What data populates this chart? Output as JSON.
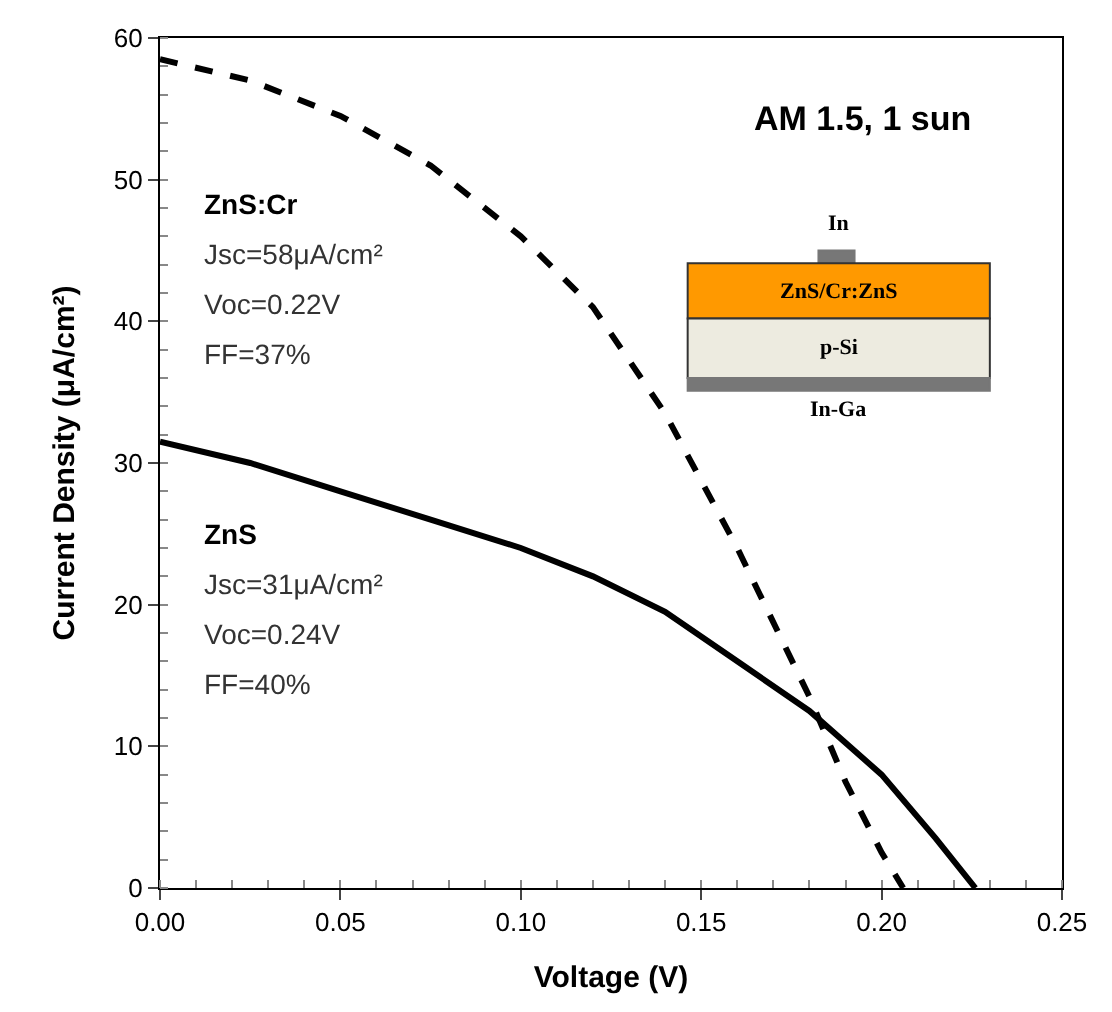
{
  "chart_data": {
    "type": "line",
    "xlabel": "Voltage (V)",
    "ylabel": "Current Density (μA/cm²)",
    "xlim": [
      0,
      0.25
    ],
    "xticks": [
      {
        "value": 0,
        "label": "0.00"
      },
      0.05,
      {
        "value": 0.1,
        "label": "0.10"
      },
      0.15,
      {
        "value": 0.2,
        "label": "0.20"
      },
      0.25
    ],
    "ylim": [
      0,
      60
    ],
    "yticks": [
      0,
      10,
      20,
      30,
      40,
      50,
      60
    ],
    "marker": "none",
    "series": [
      {
        "color": "#000000",
        "line_style": "dashed",
        "x": [
          0,
          0.025,
          0.05,
          0.075,
          0.1,
          0.12,
          0.14,
          0.16,
          0.18,
          0.19,
          0.2,
          0.206
        ],
        "values": [
          58.5,
          57,
          54.5,
          51,
          46,
          41,
          33.5,
          24,
          13.5,
          7.5,
          2.5,
          0
        ]
      },
      {
        "color": "#000000",
        "line_style": "solid",
        "x": [
          0,
          0.025,
          0.05,
          0.075,
          0.1,
          0.12,
          0.14,
          0.16,
          0.18,
          0.2,
          0.215,
          0.226
        ],
        "values": [
          31.5,
          30,
          28,
          26,
          24,
          22,
          19.5,
          16,
          12.5,
          8,
          3.5,
          0
        ]
      }
    ],
    "annotations": [
      "AM 1.5, 1 sun",
      "ZnS:Cr",
      "Jsc=58μA/cm²",
      "Voc=0.22V",
      "FF=37%",
      "ZnS",
      "Jsc=31μA/cm²",
      "Voc=0.24V",
      "FF=40%",
      "In",
      "ZnS/Cr:ZnS",
      "p-Si",
      "In-Ga"
    ]
  }
}
